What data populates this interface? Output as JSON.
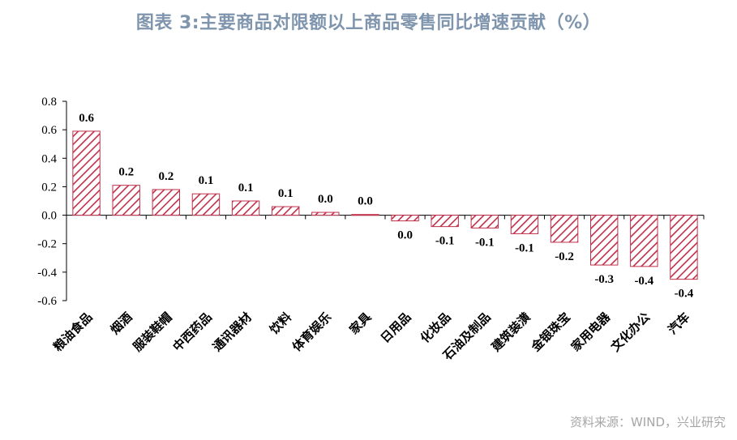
{
  "title": "图表 3:主要商品对限额以上商品零售同比增速贡献（%）",
  "source": "资料来源：WIND，兴业研究",
  "colors": {
    "bar": "#c0304a",
    "title": "#7f95ad",
    "source": "#a6a6a6"
  },
  "chart_data": {
    "type": "bar",
    "categories": [
      "粮油食品",
      "烟酒",
      "服装鞋帽",
      "中西药品",
      "通讯器材",
      "饮料",
      "体育娱乐",
      "家具",
      "日用品",
      "化妆品",
      "石油及制品",
      "建筑装潢",
      "金银珠宝",
      "家用电器",
      "文化办公",
      "汽车"
    ],
    "values": [
      0.59,
      0.21,
      0.18,
      0.15,
      0.1,
      0.06,
      0.02,
      0.005,
      -0.04,
      -0.08,
      -0.09,
      -0.13,
      -0.19,
      -0.35,
      -0.36,
      -0.45
    ],
    "data_labels": [
      "0.6",
      "0.2",
      "0.2",
      "0.1",
      "0.1",
      "0.1",
      "0.0",
      "0.0",
      "0.0",
      "-0.1",
      "-0.1",
      "-0.1",
      "-0.2",
      "-0.3",
      "-0.4",
      "-0.4"
    ],
    "ylim": [
      -0.6,
      0.8
    ],
    "yticks": [
      "0.8",
      "0.6",
      "0.4",
      "0.2",
      "0.0",
      "-0.2",
      "-0.4",
      "-0.6"
    ],
    "grid": false,
    "legend": "none"
  }
}
